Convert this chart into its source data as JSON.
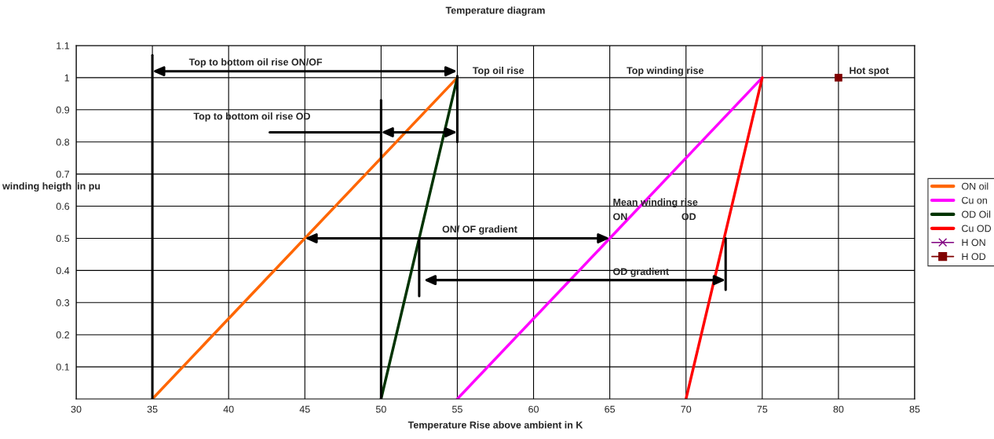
{
  "chart_data": {
    "type": "line",
    "title": "Temperature diagram",
    "xlabel": "Temperature Rise above ambient in K",
    "ylabel": "winding heigth  in pu",
    "series": [
      {
        "name": "ON oil",
        "color": "#ff6600",
        "x": [
          35,
          55
        ],
        "values": [
          0,
          1
        ]
      },
      {
        "name": "Cu on",
        "color": "#ff00ff",
        "x": [
          55,
          75
        ],
        "values": [
          0,
          1
        ]
      },
      {
        "name": "OD Oil",
        "color": "#003300",
        "x": [
          50,
          55
        ],
        "values": [
          0,
          1
        ]
      },
      {
        "name": "Cu OD",
        "color": "#ff0000",
        "x": [
          70,
          75
        ],
        "values": [
          0,
          1
        ]
      },
      {
        "name": "H ON",
        "color": "#800080",
        "marker": "cross"
      },
      {
        "name": "H OD",
        "color": "#800000",
        "x": [
          80
        ],
        "values": [
          1
        ],
        "marker": "square"
      },
      {
        "color": "#000000",
        "x": [
          35,
          35
        ],
        "values": [
          0,
          1.07
        ]
      },
      {
        "color": "#000000",
        "x": [
          50,
          50
        ],
        "values": [
          0,
          0.93
        ]
      },
      {
        "color": "#000000",
        "x": [
          55,
          55
        ],
        "values": [
          0.8,
          1.005
        ]
      },
      {
        "color": "#000000",
        "x": [
          52.5,
          52.5
        ],
        "values": [
          0.32,
          0.5
        ]
      },
      {
        "color": "#000000",
        "x": [
          72.6,
          72.6
        ],
        "values": [
          0.34,
          0.5
        ]
      },
      {
        "color": "#000000",
        "x": [
          42.7,
          50
        ],
        "values": [
          0.83,
          0.83
        ]
      }
    ],
    "annotations": [
      "Top to bottom oil rise ON/OF",
      "Top oil rise",
      "Top winding rise",
      "Hot spot",
      {
        "text": "Top to bottom oil rise OD",
        "x": 42.7,
        "y": 0.83
      },
      "Mean winding rise",
      "ON",
      "OD",
      "ON/ OF gradient",
      "OD gradient"
    ],
    "xlim": [
      30,
      85
    ],
    "xticks": [
      30,
      35,
      40,
      45,
      50,
      55,
      60,
      65,
      70,
      75,
      80,
      85
    ],
    "ylim": [
      0,
      1.1
    ],
    "yticks": [
      0.1,
      0.2,
      0.3,
      0.4,
      0.5,
      0.6,
      0.7,
      0.8,
      0.9,
      1,
      1.1
    ],
    "grid": true,
    "legend": "right",
    "line_style": "solid"
  }
}
